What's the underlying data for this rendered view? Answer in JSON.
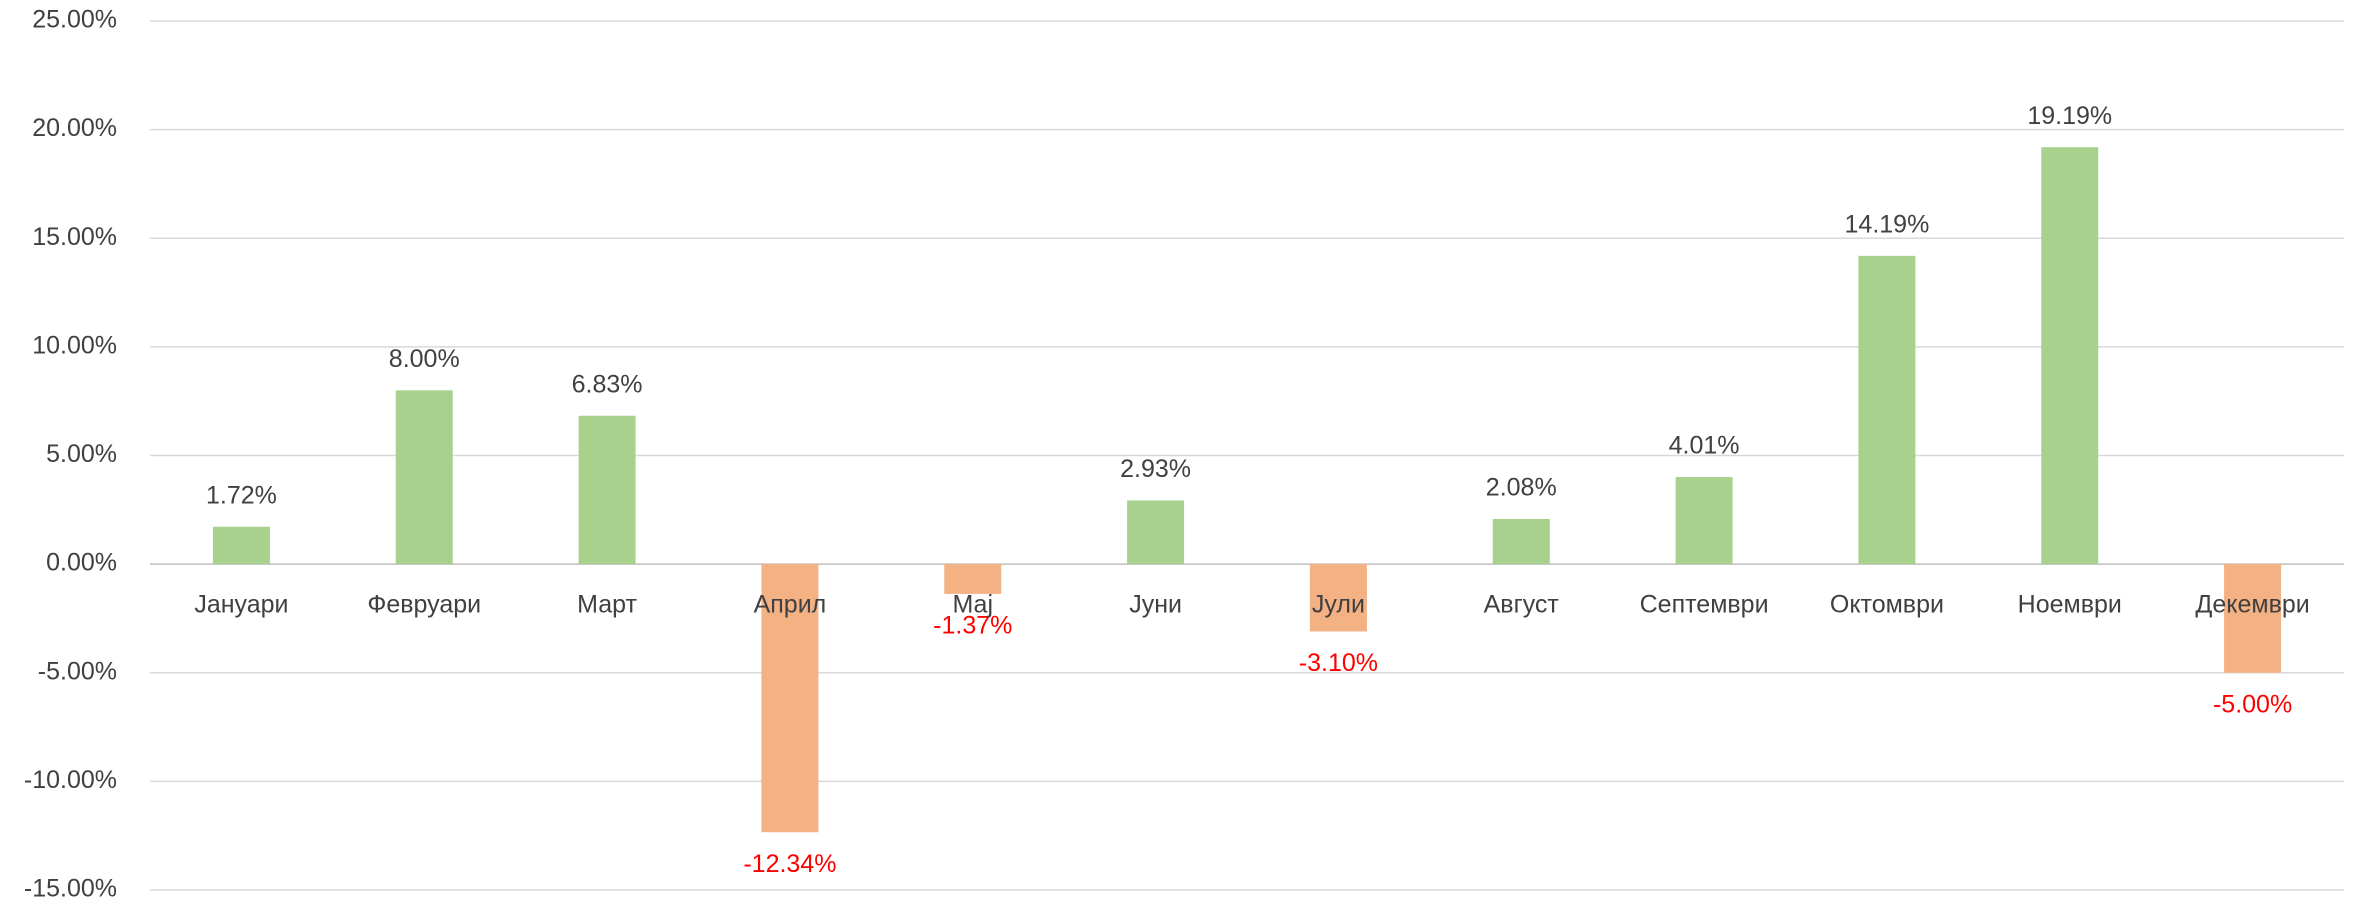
{
  "chart_data": {
    "type": "bar",
    "categories": [
      "Јануари",
      "Февруари",
      "Март",
      "Април",
      "Мај",
      "Јуни",
      "Јули",
      "Август",
      "Септември",
      "Октомври",
      "Ноември",
      "Декември"
    ],
    "values": [
      1.72,
      8.0,
      6.83,
      -12.34,
      -1.37,
      2.93,
      -3.1,
      2.08,
      4.01,
      14.19,
      19.19,
      -5.0
    ],
    "value_labels": [
      "1.72%",
      "8.00%",
      "6.83%",
      "-12.34%",
      "-1.37%",
      "2.93%",
      "-3.10%",
      "2.08%",
      "4.01%",
      "14.19%",
      "19.19%",
      "-5.00%"
    ],
    "positive_color": "#a9d18e",
    "negative_color": "#f4b183",
    "negative_label_color": "#ff0000",
    "ylim": [
      -15,
      25
    ],
    "yticks": [
      {
        "value": -15,
        "label": "-15.00%"
      },
      {
        "value": -10,
        "label": "-10.00%"
      },
      {
        "value": -5,
        "label": "-5.00%"
      },
      {
        "value": 0,
        "label": "0.00%"
      },
      {
        "value": 5,
        "label": "5.00%"
      },
      {
        "value": 10,
        "label": "10.00%"
      },
      {
        "value": 15,
        "label": "15.00%"
      },
      {
        "value": 20,
        "label": "20.00%"
      },
      {
        "value": 25,
        "label": "25.00%"
      }
    ],
    "grid": true
  }
}
